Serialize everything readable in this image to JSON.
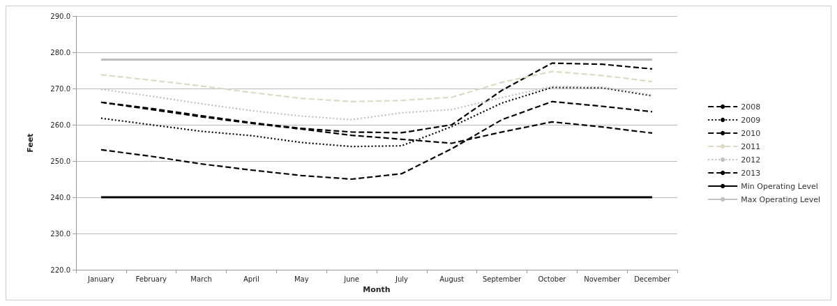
{
  "chart_data": {
    "type": "line",
    "xlabel": "Month",
    "ylabel": "Feet",
    "categories": [
      "January",
      "February",
      "March",
      "April",
      "May",
      "June",
      "July",
      "August",
      "September",
      "October",
      "November",
      "December"
    ],
    "series": [
      {
        "name": "2008",
        "color": "#000000",
        "line_style": "dashed",
        "values": [
          253.1,
          251.3,
          249.2,
          247.5,
          246.0,
          245.0,
          246.5,
          253.4,
          261.4,
          266.4,
          265.1,
          263.6
        ]
      },
      {
        "name": "2009",
        "color": "#000000",
        "line_style": "dotted",
        "values": [
          261.8,
          260.0,
          258.2,
          257.0,
          255.1,
          254.0,
          254.2,
          259.5,
          266.0,
          270.3,
          270.2,
          268.0
        ]
      },
      {
        "name": "2010",
        "color": "#000000",
        "line_style": "dashed",
        "values": [
          266.2,
          264.5,
          262.5,
          260.6,
          259.0,
          258.0,
          257.8,
          260.0,
          269.5,
          277.0,
          276.7,
          275.4
        ]
      },
      {
        "name": "2011",
        "color": "#ddd9c3",
        "line_style": "dashed",
        "values": [
          273.8,
          272.3,
          270.7,
          268.9,
          267.3,
          266.4,
          266.7,
          267.6,
          271.7,
          274.7,
          273.6,
          271.9
        ]
      },
      {
        "name": "2012",
        "color": "#bfbfbf",
        "line_style": "dotted",
        "values": [
          269.8,
          267.9,
          265.8,
          263.9,
          262.4,
          261.4,
          263.3,
          264.2,
          267.5,
          270.6,
          270.4,
          268.2
        ]
      },
      {
        "name": "2013",
        "color": "#000000",
        "line_style": "dashed",
        "values": [
          266.2,
          264.2,
          262.2,
          260.4,
          258.8,
          257.1,
          256.0,
          254.9,
          258.0,
          260.8,
          259.4,
          257.7
        ]
      },
      {
        "name": "Min Operating Level",
        "color": "#000000",
        "line_style": "solid",
        "values": [
          240,
          240,
          240,
          240,
          240,
          240,
          240,
          240,
          240,
          240,
          240,
          240
        ]
      },
      {
        "name": "Max Operating Level",
        "color": "#bfbfbf",
        "line_style": "solid",
        "values": [
          278,
          278,
          278,
          278,
          278,
          278,
          278,
          278,
          278,
          278,
          278,
          278
        ]
      }
    ],
    "ylim": [
      220,
      290
    ],
    "yticks": [
      {
        "value": 220,
        "label": "220.0"
      },
      {
        "value": 230,
        "label": "230.0"
      },
      {
        "value": 240,
        "label": "240.0"
      },
      {
        "value": 250,
        "label": "250.0"
      },
      {
        "value": 260,
        "label": "260.0"
      },
      {
        "value": 270,
        "label": "270.0"
      },
      {
        "value": 280,
        "label": "280.0"
      },
      {
        "value": 290,
        "label": "290.0"
      }
    ],
    "grid": "y",
    "legend": "right",
    "marker": "none"
  }
}
